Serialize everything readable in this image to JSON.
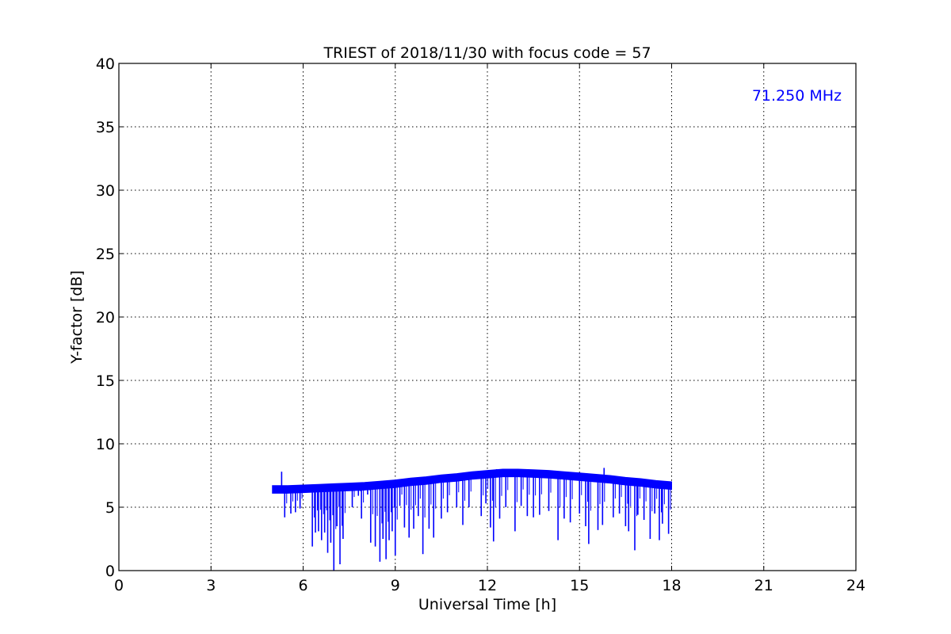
{
  "chart_data": {
    "type": "line",
    "title": "TRIEST of 2018/11/30 with focus code = 57",
    "xlabel": "Universal Time [h]",
    "ylabel": "Y-factor [dB]",
    "xlim": [
      0,
      24
    ],
    "ylim": [
      0,
      40
    ],
    "xticks": [
      0,
      3,
      6,
      9,
      12,
      15,
      18,
      21,
      24
    ],
    "yticks": [
      0,
      5,
      10,
      15,
      20,
      25,
      30,
      35,
      40
    ],
    "xtick_labels": [
      "0",
      "3",
      "6",
      "9",
      "12",
      "15",
      "18",
      "21",
      "24"
    ],
    "ytick_labels": [
      "0",
      "5",
      "10",
      "15",
      "20",
      "25",
      "30",
      "35",
      "40"
    ],
    "grid": true,
    "annotation": "71.250 MHz",
    "series": [
      {
        "color": "#0000ff",
        "baseline": {
          "x": [
            5.0,
            5.5,
            6.0,
            6.5,
            7.0,
            7.5,
            8.0,
            8.5,
            9.0,
            9.5,
            10.0,
            10.5,
            11.0,
            11.5,
            12.0,
            12.5,
            13.0,
            13.5,
            14.0,
            14.5,
            15.0,
            15.5,
            16.0,
            16.5,
            17.0,
            17.5,
            18.0
          ],
          "y": [
            6.4,
            6.4,
            6.45,
            6.5,
            6.55,
            6.6,
            6.65,
            6.75,
            6.85,
            7.0,
            7.1,
            7.25,
            7.35,
            7.5,
            7.6,
            7.7,
            7.7,
            7.65,
            7.6,
            7.5,
            7.4,
            7.3,
            7.2,
            7.05,
            6.95,
            6.8,
            6.7
          ]
        },
        "spikes": [
          {
            "x": 5.3,
            "y": 7.8
          },
          {
            "x": 15.8,
            "y": 8.1
          },
          {
            "x": 12.3,
            "y": 8.0
          }
        ],
        "dips": [
          {
            "x": 5.4,
            "y": 4.2
          },
          {
            "x": 5.6,
            "y": 4.5
          },
          {
            "x": 5.75,
            "y": 4.6
          },
          {
            "x": 5.9,
            "y": 4.9
          },
          {
            "x": 6.3,
            "y": 1.9
          },
          {
            "x": 6.4,
            "y": 3.0
          },
          {
            "x": 6.5,
            "y": 3.1
          },
          {
            "x": 6.6,
            "y": 2.4
          },
          {
            "x": 6.7,
            "y": 3.0
          },
          {
            "x": 6.8,
            "y": 1.4
          },
          {
            "x": 6.9,
            "y": 2.2
          },
          {
            "x": 7.0,
            "y": 0.0
          },
          {
            "x": 7.1,
            "y": 3.5
          },
          {
            "x": 7.2,
            "y": 0.5
          },
          {
            "x": 7.3,
            "y": 2.5
          },
          {
            "x": 7.6,
            "y": 5.0
          },
          {
            "x": 7.8,
            "y": 5.9
          },
          {
            "x": 7.9,
            "y": 4.1
          },
          {
            "x": 8.1,
            "y": 6.0
          },
          {
            "x": 8.2,
            "y": 2.2
          },
          {
            "x": 8.35,
            "y": 1.9
          },
          {
            "x": 8.5,
            "y": 0.7
          },
          {
            "x": 8.6,
            "y": 2.5
          },
          {
            "x": 8.7,
            "y": 0.9
          },
          {
            "x": 8.8,
            "y": 2.4
          },
          {
            "x": 8.9,
            "y": 3.1
          },
          {
            "x": 9.0,
            "y": 1.2
          },
          {
            "x": 9.15,
            "y": 5.1
          },
          {
            "x": 9.3,
            "y": 3.4
          },
          {
            "x": 9.45,
            "y": 2.6
          },
          {
            "x": 9.6,
            "y": 3.3
          },
          {
            "x": 9.75,
            "y": 4.3
          },
          {
            "x": 9.9,
            "y": 1.3
          },
          {
            "x": 10.1,
            "y": 3.3
          },
          {
            "x": 10.25,
            "y": 2.6
          },
          {
            "x": 10.5,
            "y": 4.1
          },
          {
            "x": 10.7,
            "y": 4.6
          },
          {
            "x": 11.0,
            "y": 5.0
          },
          {
            "x": 11.2,
            "y": 3.6
          },
          {
            "x": 11.4,
            "y": 5.0
          },
          {
            "x": 11.8,
            "y": 4.3
          },
          {
            "x": 11.95,
            "y": 5.3
          },
          {
            "x": 12.1,
            "y": 3.4
          },
          {
            "x": 12.2,
            "y": 2.3
          },
          {
            "x": 12.4,
            "y": 4.1
          },
          {
            "x": 12.6,
            "y": 5.0
          },
          {
            "x": 12.9,
            "y": 3.1
          },
          {
            "x": 13.1,
            "y": 5.1
          },
          {
            "x": 13.3,
            "y": 4.3
          },
          {
            "x": 13.5,
            "y": 4.2
          },
          {
            "x": 13.7,
            "y": 4.4
          },
          {
            "x": 14.0,
            "y": 4.7
          },
          {
            "x": 14.3,
            "y": 2.4
          },
          {
            "x": 14.5,
            "y": 4.1
          },
          {
            "x": 14.7,
            "y": 3.8
          },
          {
            "x": 15.0,
            "y": 4.5
          },
          {
            "x": 15.2,
            "y": 3.5
          },
          {
            "x": 15.3,
            "y": 2.1
          },
          {
            "x": 15.6,
            "y": 3.2
          },
          {
            "x": 15.75,
            "y": 3.6
          },
          {
            "x": 16.1,
            "y": 4.2
          },
          {
            "x": 16.3,
            "y": 4.5
          },
          {
            "x": 16.5,
            "y": 3.5
          },
          {
            "x": 16.6,
            "y": 3.1
          },
          {
            "x": 16.8,
            "y": 1.6
          },
          {
            "x": 16.9,
            "y": 4.4
          },
          {
            "x": 17.1,
            "y": 4.0
          },
          {
            "x": 17.3,
            "y": 2.5
          },
          {
            "x": 17.45,
            "y": 4.5
          },
          {
            "x": 17.6,
            "y": 2.4
          },
          {
            "x": 17.7,
            "y": 3.7
          },
          {
            "x": 17.9,
            "y": 2.9
          }
        ]
      }
    ]
  }
}
